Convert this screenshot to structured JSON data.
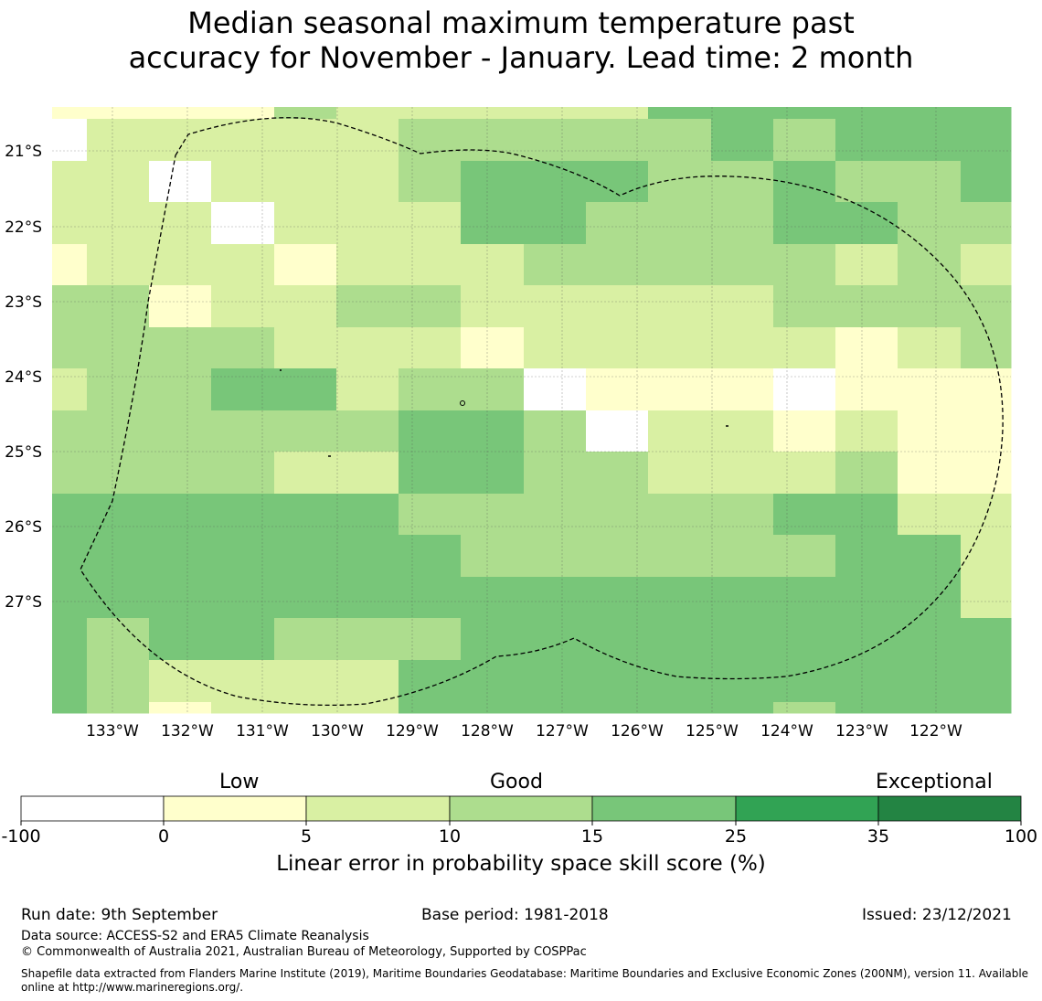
{
  "title": {
    "line1": "Median seasonal maximum temperature past",
    "line2": "accuracy for November - January. Lead time: 2 month"
  },
  "map": {
    "lon_labels": [
      "133°W",
      "132°W",
      "131°W",
      "130°W",
      "129°W",
      "128°W",
      "127°W",
      "126°W",
      "125°W",
      "124°W",
      "123°W",
      "122°W"
    ],
    "lat_labels": [
      "21°S",
      "22°S",
      "23°S",
      "24°S",
      "25°S",
      "26°S",
      "27°S"
    ],
    "grid_cells": [
      [
        "B",
        "B",
        "B",
        "B",
        "D",
        "C",
        "C",
        "C",
        "C",
        "C",
        "E",
        "E",
        "E",
        "E",
        "E",
        "E"
      ],
      [
        "A",
        "C",
        "C",
        "C",
        "C",
        "C",
        "D",
        "D",
        "D",
        "D",
        "D",
        "E",
        "D",
        "E",
        "E",
        "E"
      ],
      [
        "C",
        "C",
        "A",
        "C",
        "C",
        "C",
        "D",
        "E",
        "E",
        "E",
        "D",
        "D",
        "E",
        "D",
        "D",
        "E"
      ],
      [
        "C",
        "C",
        "C",
        "A",
        "C",
        "C",
        "C",
        "E",
        "E",
        "D",
        "D",
        "D",
        "E",
        "E",
        "D",
        "D"
      ],
      [
        "B",
        "C",
        "C",
        "C",
        "B",
        "C",
        "C",
        "C",
        "D",
        "D",
        "D",
        "D",
        "D",
        "C",
        "D",
        "C"
      ],
      [
        "D",
        "D",
        "B",
        "C",
        "C",
        "D",
        "D",
        "C",
        "C",
        "C",
        "C",
        "C",
        "D",
        "D",
        "D",
        "D"
      ],
      [
        "D",
        "D",
        "D",
        "D",
        "C",
        "C",
        "C",
        "B",
        "C",
        "C",
        "C",
        "C",
        "C",
        "B",
        "C",
        "D"
      ],
      [
        "C",
        "D",
        "D",
        "E",
        "E",
        "C",
        "D",
        "D",
        "A",
        "B",
        "B",
        "B",
        "A",
        "B",
        "B",
        "B"
      ],
      [
        "D",
        "D",
        "D",
        "D",
        "D",
        "D",
        "E",
        "E",
        "D",
        "A",
        "C",
        "C",
        "B",
        "C",
        "B",
        "B"
      ],
      [
        "D",
        "D",
        "D",
        "D",
        "C",
        "C",
        "E",
        "E",
        "D",
        "D",
        "C",
        "C",
        "C",
        "D",
        "B",
        "B"
      ],
      [
        "E",
        "E",
        "E",
        "E",
        "E",
        "E",
        "D",
        "D",
        "D",
        "D",
        "D",
        "D",
        "E",
        "E",
        "C",
        "C"
      ],
      [
        "E",
        "E",
        "E",
        "E",
        "E",
        "E",
        "E",
        "D",
        "D",
        "D",
        "D",
        "D",
        "D",
        "E",
        "E",
        "C"
      ],
      [
        "E",
        "E",
        "E",
        "E",
        "E",
        "E",
        "E",
        "E",
        "E",
        "E",
        "E",
        "E",
        "E",
        "E",
        "E",
        "C"
      ],
      [
        "E",
        "D",
        "E",
        "E",
        "D",
        "D",
        "D",
        "E",
        "E",
        "E",
        "E",
        "E",
        "E",
        "E",
        "E",
        "E"
      ],
      [
        "E",
        "D",
        "C",
        "C",
        "C",
        "C",
        "E",
        "E",
        "E",
        "E",
        "E",
        "E",
        "E",
        "E",
        "E",
        "E"
      ],
      [
        "E",
        "D",
        "B",
        "C",
        "C",
        "C",
        "E",
        "E",
        "E",
        "E",
        "E",
        "E",
        "D",
        "E",
        "E",
        "E"
      ]
    ],
    "category_colors": {
      "A": "#ffffff",
      "B": "#ffffcc",
      "C": "#d9f0a3",
      "D": "#addd8e",
      "E": "#78c679",
      "F": "#31a354",
      "G": "#238443"
    }
  },
  "colorbar": {
    "categories": [
      "Low",
      "Good",
      "Exceptional"
    ],
    "ticks": [
      "-100",
      "0",
      "5",
      "10",
      "15",
      "25",
      "35",
      "100"
    ],
    "colors": [
      "#ffffff",
      "#ffffcc",
      "#d9f0a3",
      "#addd8e",
      "#78c679",
      "#31a354",
      "#238443"
    ],
    "label": "Linear error in probability space skill score (%)"
  },
  "footer": {
    "run_date": "Run date: 9th September",
    "base_period": "Base period: 1981-2018",
    "issued": "Issued: 23/12/2021",
    "data_source": "Data source: ACCESS-S2 and ERA5 Climate Reanalysis",
    "copyright": "© Commonwealth of Australia 2021, Australian Bureau of Meteorology, Supported by COSPPac",
    "shapefile": "Shapefile data extracted from Flanders Marine Institute (2019), Maritime Boundaries Geodatabase: Maritime Boundaries and Exclusive Economic Zones (200NM), version 11. Available online at http://www.marineregions.org/."
  }
}
